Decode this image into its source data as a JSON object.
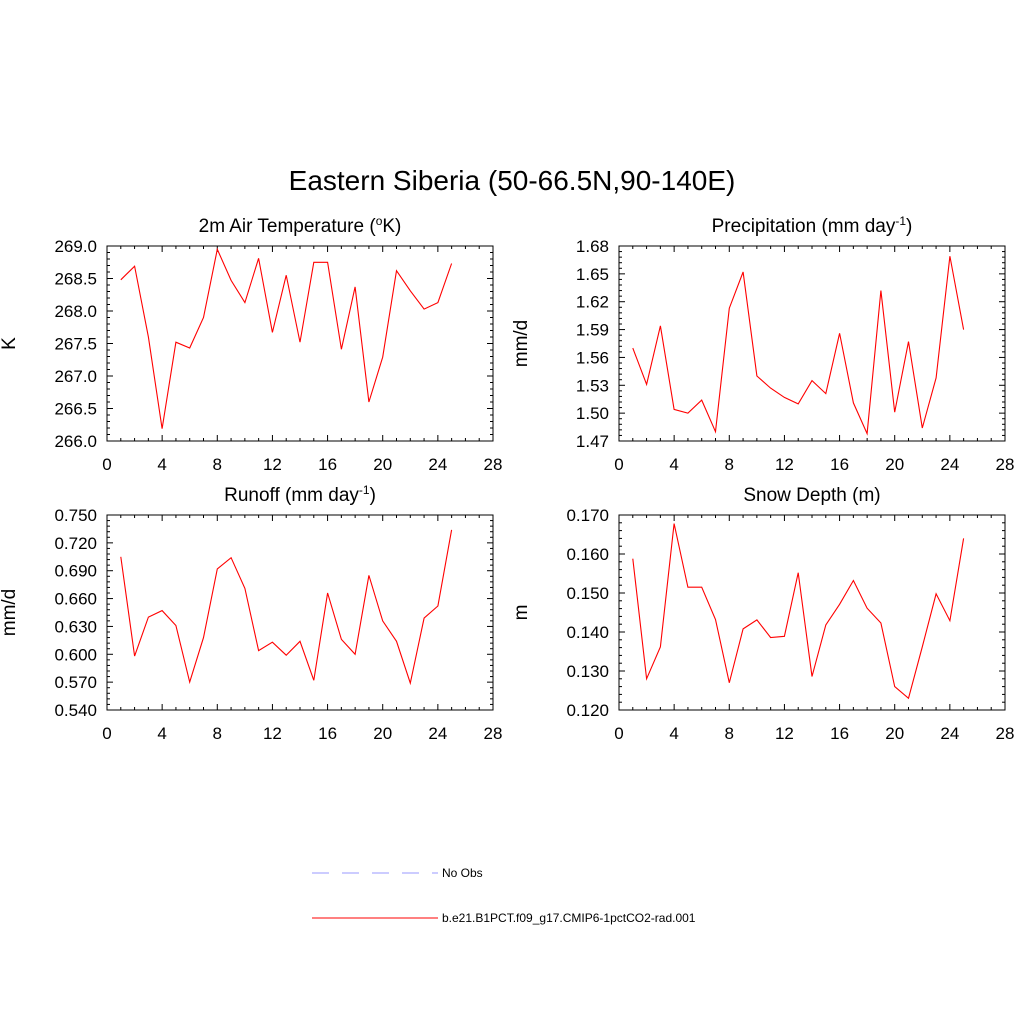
{
  "figure": {
    "title": "Eastern Siberia (50-66.5N,90-140E)"
  },
  "legend": {
    "entries": [
      {
        "label": "No Obs",
        "color": "#9999ff",
        "style": "dashed"
      },
      {
        "label": "b.e21.B1PCT.f09_g17.CMIP6-1pctCO2-rad.001",
        "color": "#ff0000",
        "style": "solid"
      }
    ]
  },
  "chart_data": [
    {
      "type": "line",
      "title": "2m Air Temperature (",
      "title_sup": "o",
      "title_tail": "K)",
      "ylabel": "K",
      "xlim": [
        0,
        28
      ],
      "xticks": [
        "0",
        "4",
        "8",
        "12",
        "16",
        "20",
        "24",
        "28"
      ],
      "ylim": [
        266.0,
        269.0
      ],
      "yticks": [
        "266.0",
        "266.5",
        "267.0",
        "267.5",
        "268.0",
        "268.5",
        "269.0"
      ],
      "color": "#ff0000",
      "x": [
        1,
        2,
        3,
        4,
        5,
        6,
        7,
        8,
        9,
        10,
        11,
        12,
        13,
        14,
        15,
        16,
        17,
        18,
        19,
        20,
        21,
        22,
        23,
        24,
        25
      ],
      "y": [
        268.48,
        268.69,
        267.6,
        266.19,
        267.52,
        267.43,
        267.9,
        268.95,
        268.47,
        268.13,
        268.81,
        267.67,
        268.55,
        267.52,
        268.75,
        268.75,
        267.41,
        268.37,
        266.6,
        267.29,
        268.62,
        268.31,
        268.03,
        268.13,
        268.73
      ]
    },
    {
      "type": "line",
      "title": "Precipitation (mm day",
      "title_sup": "-1",
      "title_tail": ")",
      "ylabel": "mm/d",
      "xlim": [
        0,
        28
      ],
      "xticks": [
        "0",
        "4",
        "8",
        "12",
        "16",
        "20",
        "24",
        "28"
      ],
      "ylim": [
        1.47,
        1.68
      ],
      "yticks": [
        "1.47",
        "1.50",
        "1.53",
        "1.56",
        "1.59",
        "1.62",
        "1.65",
        "1.68"
      ],
      "color": "#ff0000",
      "x": [
        1,
        2,
        3,
        4,
        5,
        6,
        7,
        8,
        9,
        10,
        11,
        12,
        13,
        14,
        15,
        16,
        17,
        18,
        19,
        20,
        21,
        22,
        23,
        24,
        25
      ],
      "y": [
        1.57,
        1.531,
        1.594,
        1.504,
        1.5,
        1.514,
        1.48,
        1.613,
        1.652,
        1.54,
        1.527,
        1.517,
        1.51,
        1.535,
        1.521,
        1.586,
        1.511,
        1.478,
        1.632,
        1.501,
        1.577,
        1.484,
        1.538,
        1.669,
        1.59
      ]
    },
    {
      "type": "line",
      "title": "Runoff (mm day",
      "title_sup": "-1",
      "title_tail": ")",
      "ylabel": "mm/d",
      "xlim": [
        0,
        28
      ],
      "xticks": [
        "0",
        "4",
        "8",
        "12",
        "16",
        "20",
        "24",
        "28"
      ],
      "ylim": [
        0.54,
        0.75
      ],
      "yticks": [
        "0.540",
        "0.570",
        "0.600",
        "0.630",
        "0.660",
        "0.690",
        "0.720",
        "0.750"
      ],
      "color": "#ff0000",
      "x": [
        1,
        2,
        3,
        4,
        5,
        6,
        7,
        8,
        9,
        10,
        11,
        12,
        13,
        14,
        15,
        16,
        17,
        18,
        19,
        20,
        21,
        22,
        23,
        24,
        25
      ],
      "y": [
        0.705,
        0.598,
        0.64,
        0.647,
        0.631,
        0.57,
        0.618,
        0.692,
        0.704,
        0.671,
        0.604,
        0.613,
        0.599,
        0.614,
        0.572,
        0.666,
        0.616,
        0.6,
        0.685,
        0.636,
        0.614,
        0.569,
        0.639,
        0.652,
        0.734
      ]
    },
    {
      "type": "line",
      "title": "Snow Depth (m)",
      "title_sup": "",
      "title_tail": "",
      "ylabel": "m",
      "xlim": [
        0,
        28
      ],
      "xticks": [
        "0",
        "4",
        "8",
        "12",
        "16",
        "20",
        "24",
        "28"
      ],
      "ylim": [
        0.12,
        0.17
      ],
      "yticks": [
        "0.120",
        "0.130",
        "0.140",
        "0.150",
        "0.160",
        "0.170"
      ],
      "color": "#ff0000",
      "x": [
        1,
        2,
        3,
        4,
        5,
        6,
        7,
        8,
        9,
        10,
        11,
        12,
        13,
        14,
        15,
        16,
        17,
        18,
        19,
        20,
        21,
        22,
        23,
        24,
        25
      ],
      "y": [
        0.1588,
        0.128,
        0.1362,
        0.1678,
        0.1515,
        0.1515,
        0.1432,
        0.127,
        0.1408,
        0.1431,
        0.1386,
        0.1389,
        0.1552,
        0.1286,
        0.1418,
        0.1471,
        0.1532,
        0.1461,
        0.1423,
        0.126,
        0.123,
        0.1362,
        0.1498,
        0.1429,
        0.164
      ]
    }
  ]
}
